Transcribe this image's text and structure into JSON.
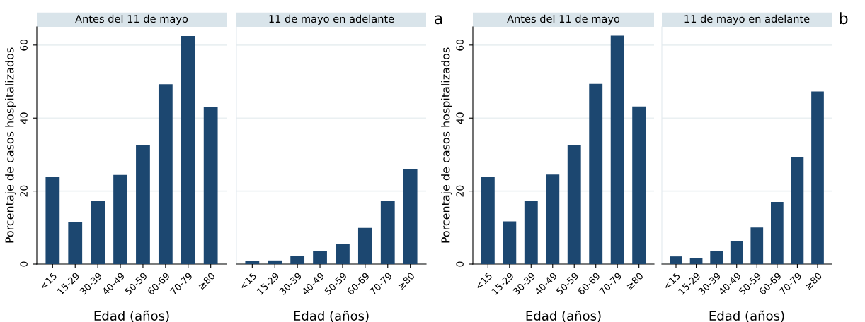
{
  "chart_data": [
    {
      "type": "bar",
      "title": "Antes del 11 de mayo",
      "xlabel": "Edad (años)",
      "ylabel": "Porcentaje de casos hospitalizados",
      "categories": [
        "<15",
        "15-29",
        "30-39",
        "40-49",
        "50-59",
        "60-69",
        "70-79",
        "≥80"
      ],
      "color": "#1c4770",
      "values": [
        23.8,
        11.6,
        17.2,
        24.4,
        32.5,
        49.3,
        62.5,
        43.1
      ],
      "ylim": [
        0,
        65
      ],
      "yticks": [
        0,
        20,
        40,
        60
      ],
      "grid": "y"
    },
    {
      "type": "bar",
      "title": "11 de mayo en adelante",
      "xlabel": "Edad (años)",
      "annotations": [
        "a"
      ],
      "categories": [
        "<15",
        "15-29",
        "30-39",
        "40-49",
        "50-59",
        "60-69",
        "70-79",
        "≥80"
      ],
      "color": "#1c4770",
      "values": [
        0.8,
        1.0,
        2.2,
        3.5,
        5.6,
        9.9,
        17.3,
        25.9
      ],
      "ylim": [
        0,
        65
      ],
      "yticks": [
        0,
        20,
        40,
        60
      ],
      "grid": "y",
      "tick_labels": "x"
    },
    {
      "type": "bar",
      "title": "Antes del 11 de mayo",
      "xlabel": "Edad (años)",
      "ylabel": "Porcentaje de casos hospitalizados",
      "categories": [
        "<15",
        "15-29",
        "30-39",
        "40-49",
        "50-59",
        "60-69",
        "70-79",
        "≥80"
      ],
      "color": "#1c4770",
      "values": [
        23.9,
        11.7,
        17.2,
        24.5,
        32.7,
        49.4,
        62.6,
        43.2
      ],
      "ylim": [
        0,
        65
      ],
      "yticks": [
        0,
        20,
        40,
        60
      ],
      "grid": "y"
    },
    {
      "type": "bar",
      "title": "11 de mayo en adelante",
      "xlabel": "Edad (años)",
      "annotations": [
        "b"
      ],
      "categories": [
        "<15",
        "15-29",
        "30-39",
        "40-49",
        "50-59",
        "60-69",
        "70-79",
        "≥80"
      ],
      "color": "#1c4770",
      "values": [
        2.1,
        1.7,
        3.5,
        6.3,
        10.0,
        17.0,
        29.4,
        47.3
      ],
      "ylim": [
        0,
        65
      ],
      "yticks": [
        0,
        20,
        40,
        60
      ],
      "grid": "y",
      "tick_labels": "x"
    }
  ]
}
